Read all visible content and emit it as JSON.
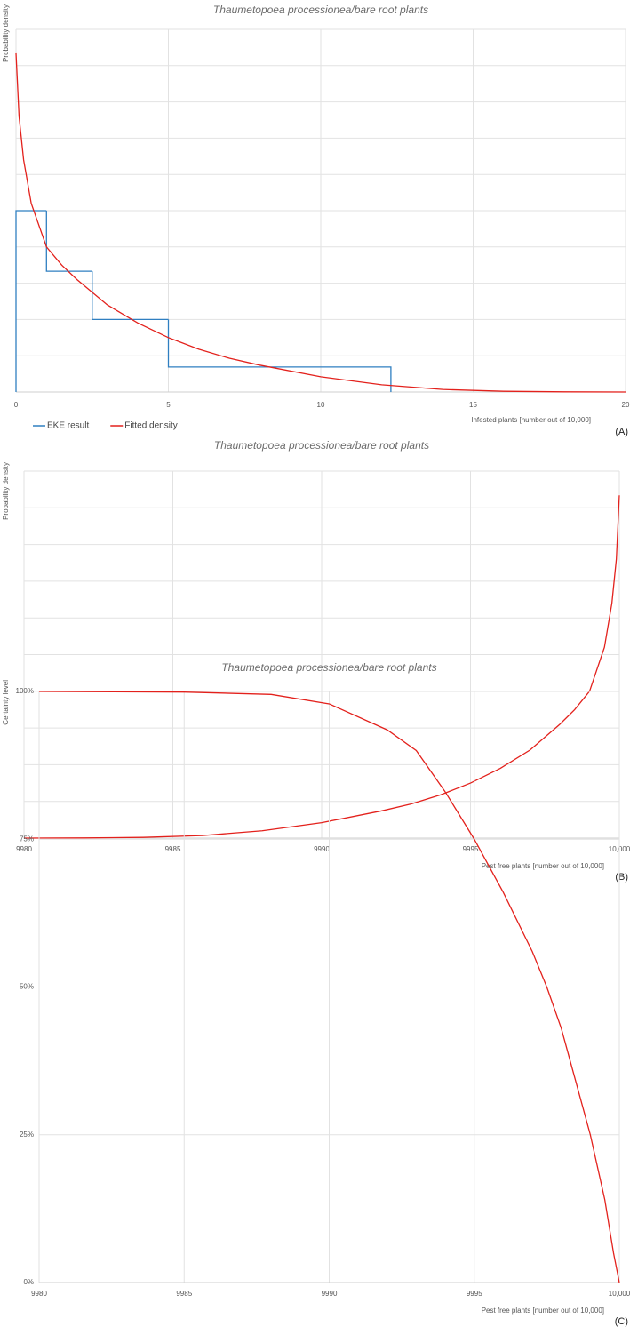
{
  "chart_data": [
    {
      "type": "density",
      "title": "Thaumetopoea processionea/bare root plants",
      "ylabel": "Probability density",
      "xlabel": "Infested plants [number out of 10,000]",
      "panel": "(A)",
      "xlim": [
        0,
        20
      ],
      "xticks": [
        0,
        5,
        10,
        15,
        20
      ],
      "ylim": [
        0,
        10
      ],
      "ygrid": [
        1,
        2,
        3,
        4,
        5,
        6,
        7,
        8,
        9,
        10
      ],
      "grid": true,
      "series": [
        {
          "name": "EKE result",
          "color": "#2f7fc1",
          "bins": [
            0,
            1,
            2.5,
            5,
            12.3
          ],
          "values": [
            5,
            3.33,
            2,
            0.69
          ]
        },
        {
          "name": "Fitted density",
          "color": "#e3211c",
          "x": [
            0,
            0.1,
            0.25,
            0.5,
            1,
            1.5,
            2,
            3,
            4,
            5,
            6,
            7,
            8,
            10,
            12,
            14,
            16,
            18,
            20
          ],
          "values": [
            9.34,
            7.6,
            6.4,
            5.2,
            4.0,
            3.5,
            3.1,
            2.4,
            1.9,
            1.5,
            1.18,
            0.93,
            0.74,
            0.42,
            0.2,
            0.07,
            0.02,
            0.005,
            0
          ]
        }
      ]
    },
    {
      "type": "density",
      "title": "Thaumetopoea processionea/bare root plants",
      "ylabel": "Probability density",
      "xlabel": "Pest free plants [number out of 10,000]",
      "panel": "(B)",
      "xlim": [
        9980,
        10000
      ],
      "xticks": [
        9980,
        9985,
        9990,
        9995,
        {
          "value": 10000,
          "label": "10,000"
        }
      ],
      "ylim": [
        0,
        10
      ],
      "ygrid": [
        1,
        2,
        3,
        4,
        5,
        6,
        7,
        8,
        9,
        10
      ],
      "grid": true,
      "series": [
        {
          "color": "#e3211c",
          "x": [
            9980,
            9982,
            9984,
            9986,
            9988,
            9990,
            9992,
            9993,
            9994,
            9995,
            9996,
            9997,
            9998,
            9998.5,
            9999,
            9999.5,
            9999.75,
            9999.9,
            10000
          ],
          "values": [
            0,
            0.005,
            0.02,
            0.07,
            0.2,
            0.42,
            0.74,
            0.93,
            1.18,
            1.5,
            1.9,
            2.4,
            3.1,
            3.5,
            4.0,
            5.2,
            6.4,
            7.6,
            9.34
          ]
        }
      ]
    },
    {
      "type": "line",
      "title": "Thaumetopoea processionea/bare root plants",
      "ylabel": "Certainty level",
      "xlabel": "Pest free plants [number out of 10,000]",
      "panel": "(C)",
      "xlim": [
        9980,
        10000
      ],
      "xticks": [
        9980,
        9985,
        9990,
        9995,
        {
          "value": 10000,
          "label": "10,000"
        }
      ],
      "ylim": [
        0,
        100
      ],
      "yticks": [
        {
          "value": 0,
          "label": "0%"
        },
        {
          "value": 25,
          "label": "25%"
        },
        {
          "value": 50,
          "label": "50%"
        },
        {
          "value": 75,
          "label": "75%"
        },
        {
          "value": 100,
          "label": "100%"
        }
      ],
      "grid": true,
      "series": [
        {
          "color": "#e3211c",
          "x": [
            9980,
            9985,
            9988,
            9990,
            9992,
            9993,
            9994,
            9995,
            9996,
            9997,
            9997.5,
            9998,
            9999,
            9999.5,
            9999.8,
            10000
          ],
          "values": [
            100,
            99.9,
            99.5,
            97.9,
            93.5,
            90,
            83,
            75,
            66,
            56,
            50,
            43,
            25,
            14,
            5,
            0
          ]
        }
      ]
    }
  ]
}
